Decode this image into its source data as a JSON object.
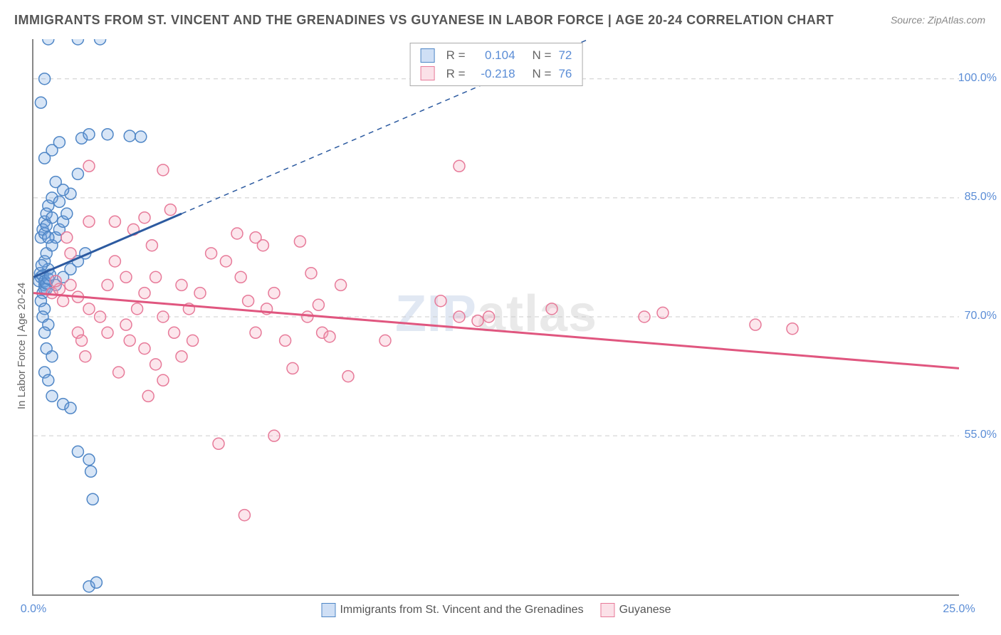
{
  "title": "IMMIGRANTS FROM ST. VINCENT AND THE GRENADINES VS GUYANESE IN LABOR FORCE | AGE 20-24 CORRELATION CHART",
  "source": "Source: ZipAtlas.com",
  "y_axis_title": "In Labor Force | Age 20-24",
  "watermark_left": "ZIP",
  "watermark_right": "atlas",
  "chart": {
    "type": "scatter",
    "xlim": [
      0.0,
      25.0
    ],
    "ylim": [
      35.0,
      105.0
    ],
    "y_ticks": [
      55.0,
      70.0,
      85.0,
      100.0
    ],
    "y_tick_labels": [
      "55.0%",
      "70.0%",
      "85.0%",
      "100.0%"
    ],
    "x_ticks": [
      0.0,
      5.0,
      10.0,
      15.0,
      20.0,
      25.0
    ],
    "x_tick_labels": [
      "0.0%",
      "",
      "",
      "",
      "",
      "25.0%"
    ],
    "background_color": "#ffffff",
    "grid_color": "#cccccc",
    "axis_color": "#888888",
    "label_color": "#5b8dd6",
    "marker_radius": 8,
    "marker_stroke_width": 1.5,
    "marker_fill_opacity": 0.28,
    "series": [
      {
        "name": "Immigrants from St. Vincent and the Grenadines",
        "color": "#6ea0e0",
        "stroke": "#4f86c6",
        "r_value": "0.104",
        "n_value": "72",
        "trend": {
          "x1": 0.0,
          "y1": 75.0,
          "x2": 4.0,
          "y2": 83.0,
          "x2_dash": 15.0,
          "y2_dash": 105.0,
          "width": 3
        },
        "points": [
          [
            0.2,
            75.0
          ],
          [
            0.3,
            74.0
          ],
          [
            0.25,
            73.0
          ],
          [
            0.4,
            76.0
          ],
          [
            0.3,
            77.0
          ],
          [
            0.35,
            78.0
          ],
          [
            0.5,
            79.0
          ],
          [
            0.6,
            80.0
          ],
          [
            0.7,
            81.0
          ],
          [
            0.8,
            82.0
          ],
          [
            0.9,
            83.0
          ],
          [
            0.4,
            84.0
          ],
          [
            0.5,
            85.0
          ],
          [
            1.0,
            85.5
          ],
          [
            0.8,
            86.0
          ],
          [
            0.6,
            87.0
          ],
          [
            1.2,
            88.0
          ],
          [
            0.3,
            90.0
          ],
          [
            0.5,
            91.0
          ],
          [
            0.7,
            92.0
          ],
          [
            1.3,
            92.5
          ],
          [
            1.5,
            93.0
          ],
          [
            2.0,
            93.0
          ],
          [
            2.6,
            92.8
          ],
          [
            2.9,
            92.7
          ],
          [
            0.2,
            97.0
          ],
          [
            0.3,
            100.0
          ],
          [
            0.4,
            105.0
          ],
          [
            1.2,
            105.0
          ],
          [
            1.8,
            105.0
          ],
          [
            0.2,
            72.0
          ],
          [
            0.3,
            71.0
          ],
          [
            0.25,
            70.0
          ],
          [
            0.4,
            69.0
          ],
          [
            0.3,
            68.0
          ],
          [
            0.35,
            66.0
          ],
          [
            0.5,
            65.0
          ],
          [
            0.3,
            63.0
          ],
          [
            0.4,
            62.0
          ],
          [
            0.5,
            60.0
          ],
          [
            0.8,
            59.0
          ],
          [
            1.0,
            58.5
          ],
          [
            1.2,
            53.0
          ],
          [
            1.5,
            52.0
          ],
          [
            1.55,
            50.5
          ],
          [
            1.6,
            47.0
          ],
          [
            0.15,
            74.5
          ],
          [
            0.18,
            75.5
          ],
          [
            0.22,
            76.5
          ],
          [
            0.25,
            75.2
          ],
          [
            0.3,
            74.5
          ],
          [
            0.35,
            73.5
          ],
          [
            0.6,
            74.0
          ],
          [
            0.8,
            75.0
          ],
          [
            1.0,
            76.0
          ],
          [
            1.2,
            77.0
          ],
          [
            1.4,
            78.0
          ],
          [
            0.3,
            82.0
          ],
          [
            0.35,
            83.0
          ],
          [
            0.5,
            82.5
          ],
          [
            0.7,
            84.5
          ],
          [
            0.2,
            80.0
          ],
          [
            0.25,
            81.0
          ],
          [
            0.3,
            80.5
          ],
          [
            0.35,
            81.5
          ],
          [
            0.4,
            80.0
          ],
          [
            1.5,
            36.0
          ],
          [
            1.7,
            36.5
          ],
          [
            0.3,
            73.5
          ],
          [
            0.35,
            74.2
          ],
          [
            0.4,
            74.8
          ],
          [
            0.45,
            75.3
          ]
        ]
      },
      {
        "name": "Guyanese",
        "color": "#f4a6ba",
        "stroke": "#e77a99",
        "r_value": "-0.218",
        "n_value": "76",
        "trend": {
          "x1": 0.0,
          "y1": 73.0,
          "x2": 25.0,
          "y2": 63.5,
          "width": 3
        },
        "points": [
          [
            0.5,
            73.0
          ],
          [
            0.8,
            72.0
          ],
          [
            1.0,
            74.0
          ],
          [
            1.2,
            72.5
          ],
          [
            1.5,
            71.0
          ],
          [
            1.5,
            82.0
          ],
          [
            1.8,
            70.0
          ],
          [
            2.0,
            68.0
          ],
          [
            2.0,
            74.0
          ],
          [
            2.2,
            77.0
          ],
          [
            2.3,
            63.0
          ],
          [
            2.5,
            69.0
          ],
          [
            2.5,
            75.0
          ],
          [
            2.6,
            67.0
          ],
          [
            2.8,
            71.0
          ],
          [
            3.0,
            73.0
          ],
          [
            3.0,
            66.0
          ],
          [
            3.1,
            60.0
          ],
          [
            3.2,
            79.0
          ],
          [
            3.3,
            64.0
          ],
          [
            3.3,
            75.0
          ],
          [
            3.5,
            70.0
          ],
          [
            3.5,
            62.0
          ],
          [
            3.7,
            83.5
          ],
          [
            3.8,
            68.0
          ],
          [
            4.0,
            65.0
          ],
          [
            4.0,
            74.0
          ],
          [
            4.2,
            71.0
          ],
          [
            4.3,
            67.0
          ],
          [
            4.5,
            73.0
          ],
          [
            5.0,
            54.0
          ],
          [
            5.5,
            80.5
          ],
          [
            5.6,
            75.0
          ],
          [
            5.8,
            72.0
          ],
          [
            6.0,
            80.0
          ],
          [
            6.0,
            68.0
          ],
          [
            6.2,
            79.0
          ],
          [
            6.3,
            71.0
          ],
          [
            6.5,
            73.0
          ],
          [
            6.8,
            67.0
          ],
          [
            7.0,
            63.5
          ],
          [
            7.2,
            79.5
          ],
          [
            7.4,
            70.0
          ],
          [
            7.5,
            75.5
          ],
          [
            7.7,
            71.5
          ],
          [
            7.8,
            68.0
          ],
          [
            8.0,
            67.5
          ],
          [
            8.3,
            74.0
          ],
          [
            8.5,
            62.5
          ],
          [
            5.7,
            45.0
          ],
          [
            1.5,
            89.0
          ],
          [
            3.5,
            88.5
          ],
          [
            11.5,
            89.0
          ],
          [
            9.5,
            67.0
          ],
          [
            11.0,
            72.0
          ],
          [
            11.5,
            70.0
          ],
          [
            12.0,
            69.5
          ],
          [
            12.3,
            70.0
          ],
          [
            14.0,
            71.0
          ],
          [
            16.5,
            70.0
          ],
          [
            17.0,
            70.5
          ],
          [
            19.5,
            69.0
          ],
          [
            20.5,
            68.5
          ],
          [
            6.5,
            55.0
          ],
          [
            2.2,
            82.0
          ],
          [
            2.7,
            81.0
          ],
          [
            3.0,
            82.5
          ],
          [
            4.8,
            78.0
          ],
          [
            5.2,
            77.0
          ],
          [
            1.2,
            68.0
          ],
          [
            1.3,
            67.0
          ],
          [
            1.4,
            65.0
          ],
          [
            1.0,
            78.0
          ],
          [
            0.9,
            80.0
          ],
          [
            0.7,
            73.5
          ],
          [
            0.6,
            74.5
          ]
        ]
      }
    ]
  },
  "stats_labels": {
    "r": "R =",
    "n": "N ="
  },
  "legend_bottom_x_left": "0.0%",
  "legend_bottom_x_right": "25.0%"
}
